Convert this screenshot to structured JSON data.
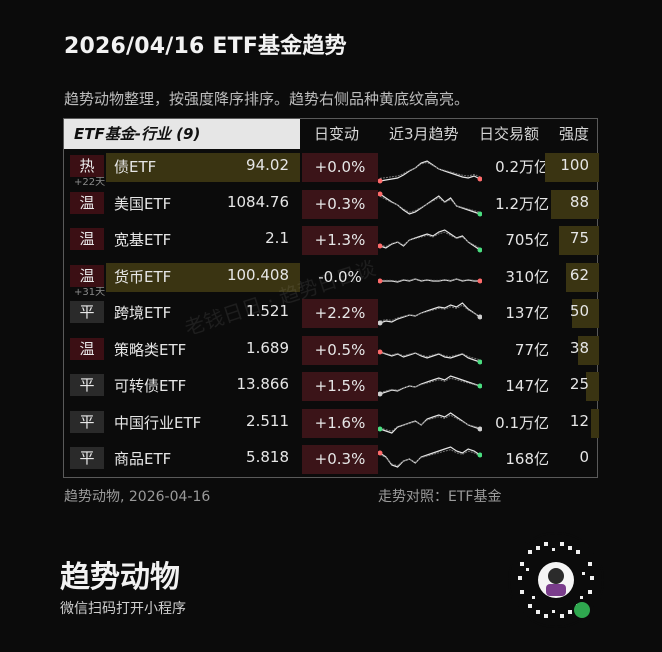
{
  "title": "2026/04/16 ETF基金趋势",
  "subtitle": "趋势动物整理，按强度降序排序。趋势右侧品种黄底纹高亮。",
  "table": {
    "header": {
      "group_label": "ETF基金-行业 (9)",
      "col_change": "日变动",
      "col_trend": "近3月趋势",
      "col_volume": "日交易额",
      "col_strength": "强度"
    },
    "rows": [
      {
        "tag": "热",
        "tag_type": "hot",
        "tag_sub": "+22天",
        "name": "债ETF",
        "price": "94.02",
        "change": "+0.0%",
        "volume": "0.2万亿",
        "strength": "100",
        "highlight": true
      },
      {
        "tag": "温",
        "tag_type": "warm",
        "tag_sub": "",
        "name": "美国ETF",
        "price": "1084.76",
        "change": "+0.3%",
        "volume": "1.2万亿",
        "strength": "88",
        "highlight": false
      },
      {
        "tag": "温",
        "tag_type": "warm",
        "tag_sub": "",
        "name": "宽基ETF",
        "price": "2.1",
        "change": "+1.3%",
        "volume": "705亿",
        "strength": "75",
        "highlight": false
      },
      {
        "tag": "温",
        "tag_type": "warm",
        "tag_sub": "+31天",
        "name": "货币ETF",
        "price": "100.408",
        "change": "-0.0%",
        "volume": "310亿",
        "strength": "62",
        "highlight": true
      },
      {
        "tag": "平",
        "tag_type": "flat",
        "tag_sub": "",
        "name": "跨境ETF",
        "price": "1.521",
        "change": "+2.2%",
        "volume": "137亿",
        "strength": "50",
        "highlight": false
      },
      {
        "tag": "温",
        "tag_type": "warm",
        "tag_sub": "",
        "name": "策略类ETF",
        "price": "1.689",
        "change": "+0.5%",
        "volume": "77亿",
        "strength": "38",
        "highlight": false
      },
      {
        "tag": "平",
        "tag_type": "flat",
        "tag_sub": "",
        "name": "可转债ETF",
        "price": "13.866",
        "change": "+1.5%",
        "volume": "147亿",
        "strength": "25",
        "highlight": false
      },
      {
        "tag": "平",
        "tag_type": "flat",
        "tag_sub": "",
        "name": "中国行业ETF",
        "price": "2.511",
        "change": "+1.6%",
        "volume": "0.1万亿",
        "strength": "12",
        "highlight": false
      },
      {
        "tag": "平",
        "tag_type": "flat",
        "tag_sub": "",
        "name": "商品ETF",
        "price": "5.818",
        "change": "+0.3%",
        "volume": "168亿",
        "strength": "0",
        "highlight": false
      }
    ]
  },
  "footer": {
    "left": "趋势动物, 2026-04-16",
    "right": "走势对照：ETF基金"
  },
  "brand": {
    "name": "趋势动物",
    "sub": "微信扫码打开小程序"
  },
  "watermark": "老钱日日 · 趋势日日谈",
  "colors": {
    "background": "#0b0b0b",
    "hot_tag": "#3b0f14",
    "highlight_yellow": "#3a3412",
    "positive_change": "#3b1418",
    "neutral_tag": "#2a2a2a"
  }
}
